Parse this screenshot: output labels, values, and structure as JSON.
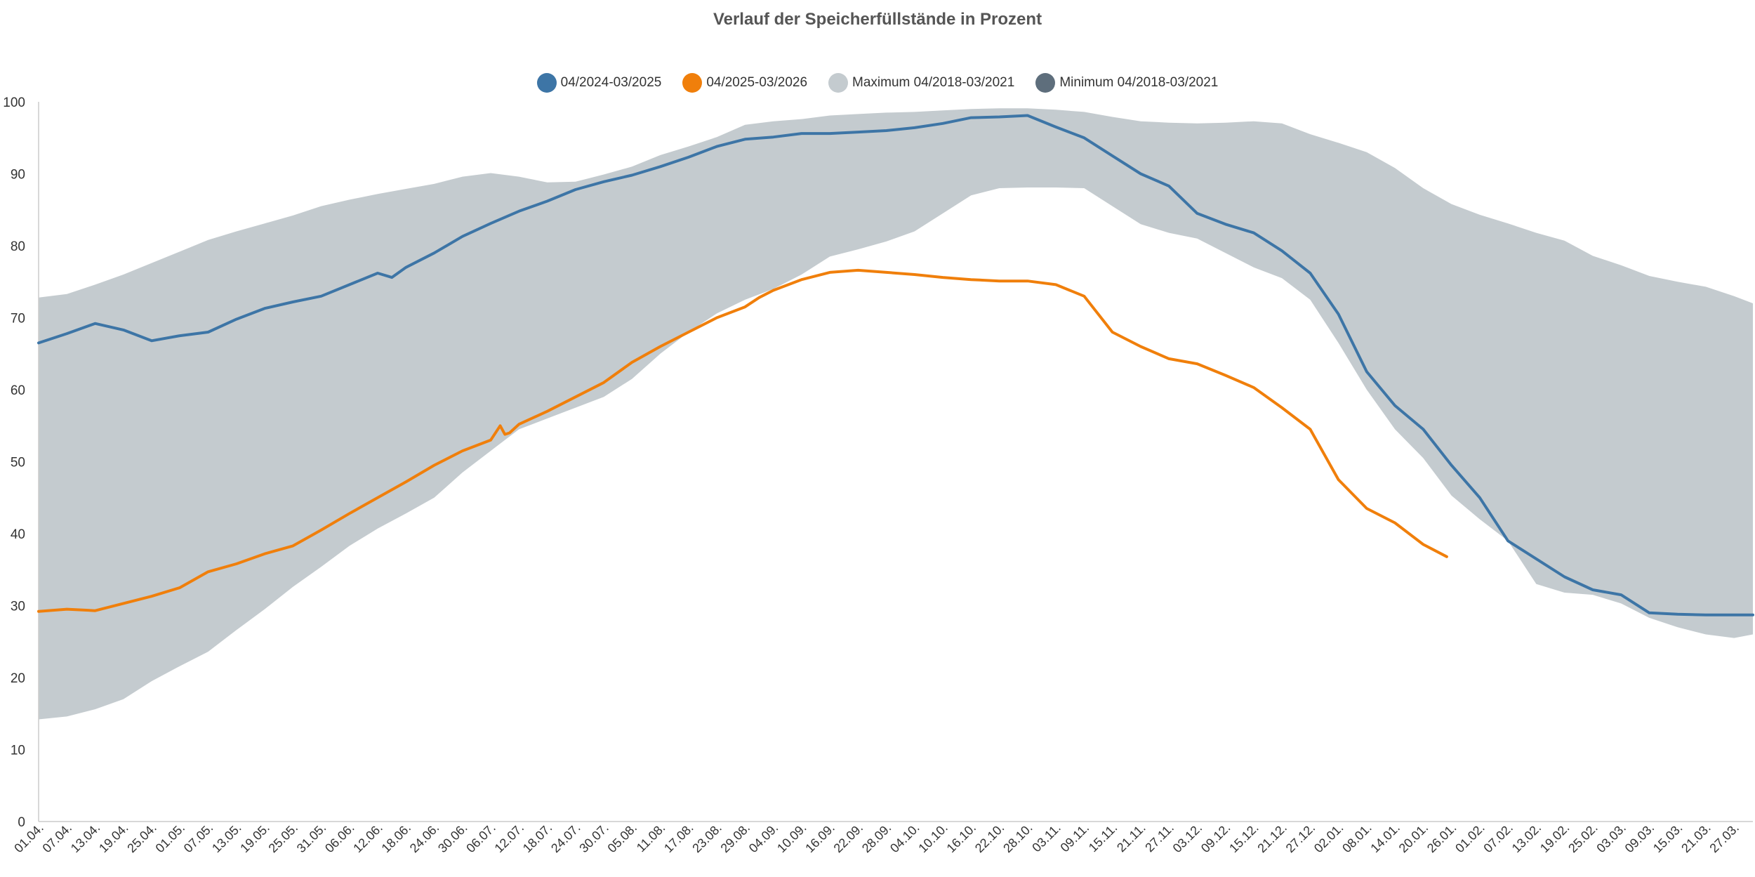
{
  "chart_data": {
    "type": "area",
    "title": "Verlauf der Speicherfüllstände in Prozent",
    "xlabel": "",
    "ylabel": "",
    "ylim": [
      0,
      100
    ],
    "yticks": [
      0,
      10,
      20,
      30,
      40,
      50,
      60,
      70,
      80,
      90,
      100
    ],
    "grid": false,
    "legend_position": "top-center",
    "xlim": [
      0,
      364
    ],
    "x_tick_labels": [
      "01.04.",
      "07.04.",
      "13.04.",
      "19.04.",
      "25.04.",
      "01.05.",
      "07.05.",
      "13.05.",
      "19.05.",
      "25.05.",
      "31.05.",
      "06.06.",
      "12.06.",
      "18.06.",
      "24.06.",
      "30.06.",
      "06.07.",
      "12.07.",
      "18.07.",
      "24.07.",
      "30.07.",
      "05.08.",
      "11.08.",
      "17.08.",
      "23.08.",
      "29.08.",
      "04.09.",
      "10.09.",
      "16.09.",
      "22.09.",
      "28.09.",
      "04.10.",
      "10.10.",
      "16.10.",
      "22.10.",
      "28.10.",
      "03.11.",
      "09.11.",
      "15.11.",
      "21.11.",
      "27.11.",
      "03.12.",
      "09.12.",
      "15.12.",
      "21.12.",
      "27.12.",
      "02.01.",
      "08.01.",
      "14.01.",
      "20.01.",
      "26.01.",
      "01.02.",
      "07.02.",
      "13.02.",
      "19.02.",
      "25.02.",
      "03.03.",
      "09.03.",
      "15.03.",
      "21.03.",
      "27.03."
    ],
    "x_tick_step_days": 6,
    "series": [
      {
        "name": "04/2024-03/2025",
        "color": "#3d75a6",
        "x": [
          0,
          6,
          12,
          18,
          24,
          30,
          36,
          42,
          48,
          54,
          60,
          66,
          72,
          75,
          78,
          84,
          90,
          96,
          102,
          108,
          114,
          120,
          126,
          132,
          138,
          144,
          150,
          156,
          162,
          168,
          174,
          180,
          186,
          192,
          198,
          204,
          210,
          216,
          222,
          228,
          234,
          240,
          246,
          252,
          258,
          264,
          270,
          276,
          282,
          288,
          294,
          300,
          306,
          312,
          318,
          324,
          330,
          336,
          342,
          348,
          354,
          360,
          364
        ],
        "values": [
          66.5,
          67.8,
          69.2,
          68.3,
          66.8,
          67.5,
          68.0,
          69.8,
          71.3,
          72.2,
          73.0,
          74.6,
          76.2,
          75.6,
          77.0,
          79.0,
          81.3,
          83.1,
          84.8,
          86.2,
          87.8,
          88.9,
          89.8,
          91.0,
          92.3,
          93.8,
          94.8,
          95.1,
          95.6,
          95.6,
          95.8,
          96.0,
          96.4,
          97.0,
          97.8,
          97.9,
          98.1,
          96.5,
          95.0,
          92.5,
          90.0,
          88.3,
          84.5,
          83.0,
          81.8,
          79.3,
          76.2,
          70.5,
          62.5,
          57.8,
          54.5,
          49.5,
          45.0,
          39.0,
          36.5,
          34.0,
          32.2,
          31.5,
          29.0,
          28.8,
          28.7,
          28.7,
          28.7
        ]
      },
      {
        "name": "04/2025-03/2026",
        "color": "#f07f0b",
        "x": [
          0,
          6,
          12,
          18,
          24,
          30,
          36,
          42,
          48,
          54,
          60,
          66,
          72,
          78,
          84,
          90,
          96,
          98,
          99,
          100,
          102,
          108,
          114,
          120,
          126,
          132,
          138,
          144,
          150,
          153,
          156,
          162,
          168,
          174,
          180,
          186,
          192,
          198,
          204,
          210,
          216,
          222,
          228,
          234,
          240,
          246,
          252,
          258,
          264,
          270,
          276,
          282,
          288,
          294,
          299
        ],
        "values": [
          29.2,
          29.5,
          29.3,
          30.3,
          31.3,
          32.5,
          34.7,
          35.8,
          37.2,
          38.3,
          40.5,
          42.8,
          45.0,
          47.2,
          49.5,
          51.5,
          53.0,
          55.0,
          53.8,
          54.0,
          55.2,
          57.0,
          59.0,
          61.0,
          63.8,
          66.0,
          68.0,
          70.0,
          71.5,
          72.8,
          73.8,
          75.3,
          76.3,
          76.6,
          76.3,
          76.0,
          75.6,
          75.3,
          75.1,
          75.1,
          74.6,
          73.0,
          68.0,
          66.0,
          64.3,
          63.6,
          62.0,
          60.3,
          57.5,
          54.5,
          47.5,
          43.5,
          41.5,
          38.5,
          36.8
        ]
      },
      {
        "name": "Maximum 04/2018-03/2021",
        "color": "#c4cbcf",
        "x": [
          0,
          6,
          12,
          18,
          24,
          30,
          36,
          42,
          48,
          54,
          60,
          66,
          72,
          78,
          84,
          90,
          96,
          102,
          108,
          114,
          120,
          126,
          132,
          138,
          144,
          150,
          156,
          162,
          168,
          174,
          180,
          186,
          192,
          198,
          204,
          210,
          216,
          222,
          228,
          234,
          240,
          246,
          252,
          258,
          264,
          270,
          276,
          282,
          288,
          294,
          300,
          306,
          312,
          318,
          324,
          330,
          336,
          342,
          348,
          354,
          360,
          364
        ],
        "values": [
          72.8,
          73.3,
          74.6,
          76.0,
          77.6,
          79.2,
          80.8,
          82.0,
          83.1,
          84.2,
          85.5,
          86.4,
          87.2,
          87.9,
          88.6,
          89.6,
          90.1,
          89.6,
          88.8,
          88.9,
          89.9,
          91.0,
          92.6,
          93.8,
          95.1,
          96.8,
          97.3,
          97.6,
          98.1,
          98.3,
          98.5,
          98.6,
          98.8,
          99.0,
          99.1,
          99.1,
          98.9,
          98.6,
          97.9,
          97.3,
          97.1,
          97.0,
          97.1,
          97.3,
          97.0,
          95.5,
          94.3,
          93.0,
          90.8,
          88.0,
          85.8,
          84.3,
          83.1,
          81.8,
          80.7,
          78.6,
          77.3,
          75.8,
          75.0,
          74.3,
          73.0,
          72.0
        ]
      },
      {
        "name": "Minimum 04/2018-03/2021",
        "color": "#5e6e7c",
        "x": [
          0,
          6,
          12,
          18,
          24,
          30,
          36,
          42,
          48,
          54,
          60,
          66,
          72,
          78,
          84,
          90,
          96,
          102,
          108,
          114,
          120,
          126,
          132,
          138,
          144,
          150,
          156,
          162,
          168,
          174,
          180,
          186,
          192,
          198,
          204,
          210,
          216,
          222,
          228,
          234,
          240,
          246,
          252,
          258,
          264,
          270,
          276,
          282,
          288,
          294,
          300,
          306,
          312,
          318,
          324,
          330,
          336,
          342,
          348,
          354,
          360,
          364
        ],
        "values": [
          14.2,
          14.6,
          15.6,
          17.0,
          19.5,
          21.6,
          23.6,
          26.6,
          29.5,
          32.6,
          35.4,
          38.3,
          40.7,
          42.8,
          45.0,
          48.5,
          51.5,
          54.5,
          56.0,
          57.5,
          59.0,
          61.5,
          65.0,
          68.0,
          70.6,
          72.5,
          74.0,
          76.0,
          78.5,
          79.5,
          80.6,
          82.0,
          84.5,
          87.0,
          88.0,
          88.1,
          88.1,
          88.0,
          85.5,
          83.0,
          81.8,
          81.0,
          79.0,
          77.0,
          75.5,
          72.5,
          66.5,
          60.0,
          54.5,
          50.5,
          45.3,
          42.0,
          39.0,
          33.0,
          31.8,
          31.5,
          30.3,
          28.3,
          27.0,
          26.0,
          25.5,
          26.0
        ]
      }
    ]
  }
}
